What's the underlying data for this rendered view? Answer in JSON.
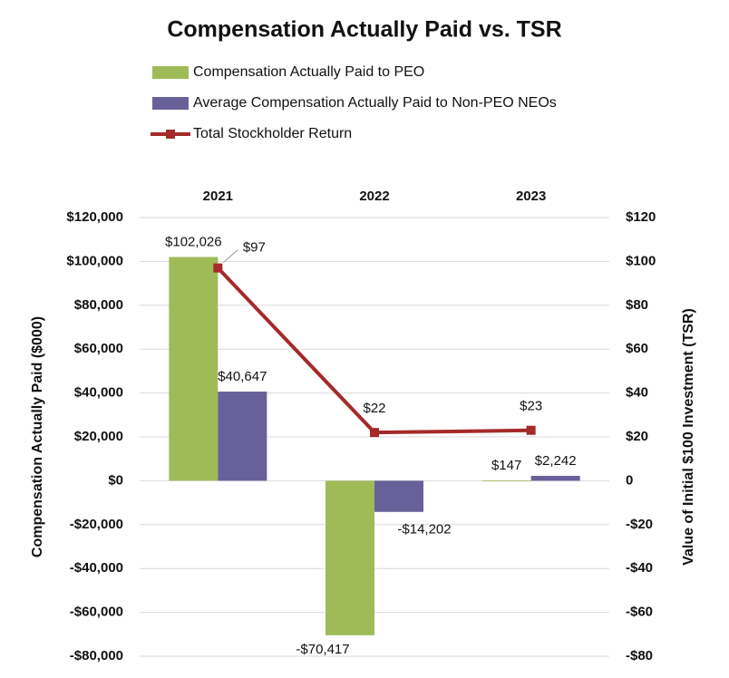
{
  "chart_data": {
    "type": "bar",
    "title": "Compensation Actually Paid vs. TSR",
    "categories": [
      "2021",
      "2022",
      "2023"
    ],
    "ylabel": "Compensation  Actually Paid ($000)",
    "y2label": "Value of Initial $100 Investment (TSR)",
    "ylim": [
      -80000,
      120000
    ],
    "yticks": [
      {
        "value": 120000,
        "label": "$120,000"
      },
      {
        "value": 100000,
        "label": "$100,000"
      },
      {
        "value": 80000,
        "label": "$80,000"
      },
      {
        "value": 60000,
        "label": "$60,000"
      },
      {
        "value": 40000,
        "label": "$40,000"
      },
      {
        "value": 20000,
        "label": "$20,000"
      },
      {
        "value": 0,
        "label": "$0"
      },
      {
        "value": -20000,
        "label": "-$20,000"
      },
      {
        "value": -40000,
        "label": "-$40,000"
      },
      {
        "value": -60000,
        "label": "-$60,000"
      },
      {
        "value": -80000,
        "label": "-$80,000"
      }
    ],
    "y2lim": [
      -80,
      120
    ],
    "y2ticks": [
      {
        "value": 120,
        "label": "$120"
      },
      {
        "value": 100,
        "label": "$100"
      },
      {
        "value": 80,
        "label": "$80"
      },
      {
        "value": 60,
        "label": "$60"
      },
      {
        "value": 40,
        "label": "$40"
      },
      {
        "value": 20,
        "label": "$20"
      },
      {
        "value": 0,
        "label": "0"
      },
      {
        "value": -20,
        "label": "-$20"
      },
      {
        "value": -40,
        "label": "-$40"
      },
      {
        "value": -60,
        "label": "-$60"
      },
      {
        "value": -80,
        "label": "-$80"
      }
    ],
    "grid": true,
    "legend": "top",
    "series": [
      {
        "name": "Compensation Actually Paid to PEO",
        "type": "bar",
        "color": "#9fbb58",
        "values": [
          102026,
          -70417,
          147
        ],
        "value_labels": [
          "$102,026",
          "-$70,417",
          "$147"
        ]
      },
      {
        "name": "Average Compensation Actually Paid to Non-PEO NEOs",
        "type": "bar",
        "color": "#686199",
        "values": [
          40647,
          -14202,
          2242
        ],
        "value_labels": [
          "$40,647",
          "-$14,202",
          "$2,242"
        ]
      },
      {
        "name": "Total Stockholder Return",
        "type": "line",
        "axis": "y2",
        "color": "#a52a2a",
        "values": [
          97,
          22,
          23
        ],
        "value_labels": [
          "$97",
          "$22",
          "$23"
        ]
      }
    ]
  }
}
